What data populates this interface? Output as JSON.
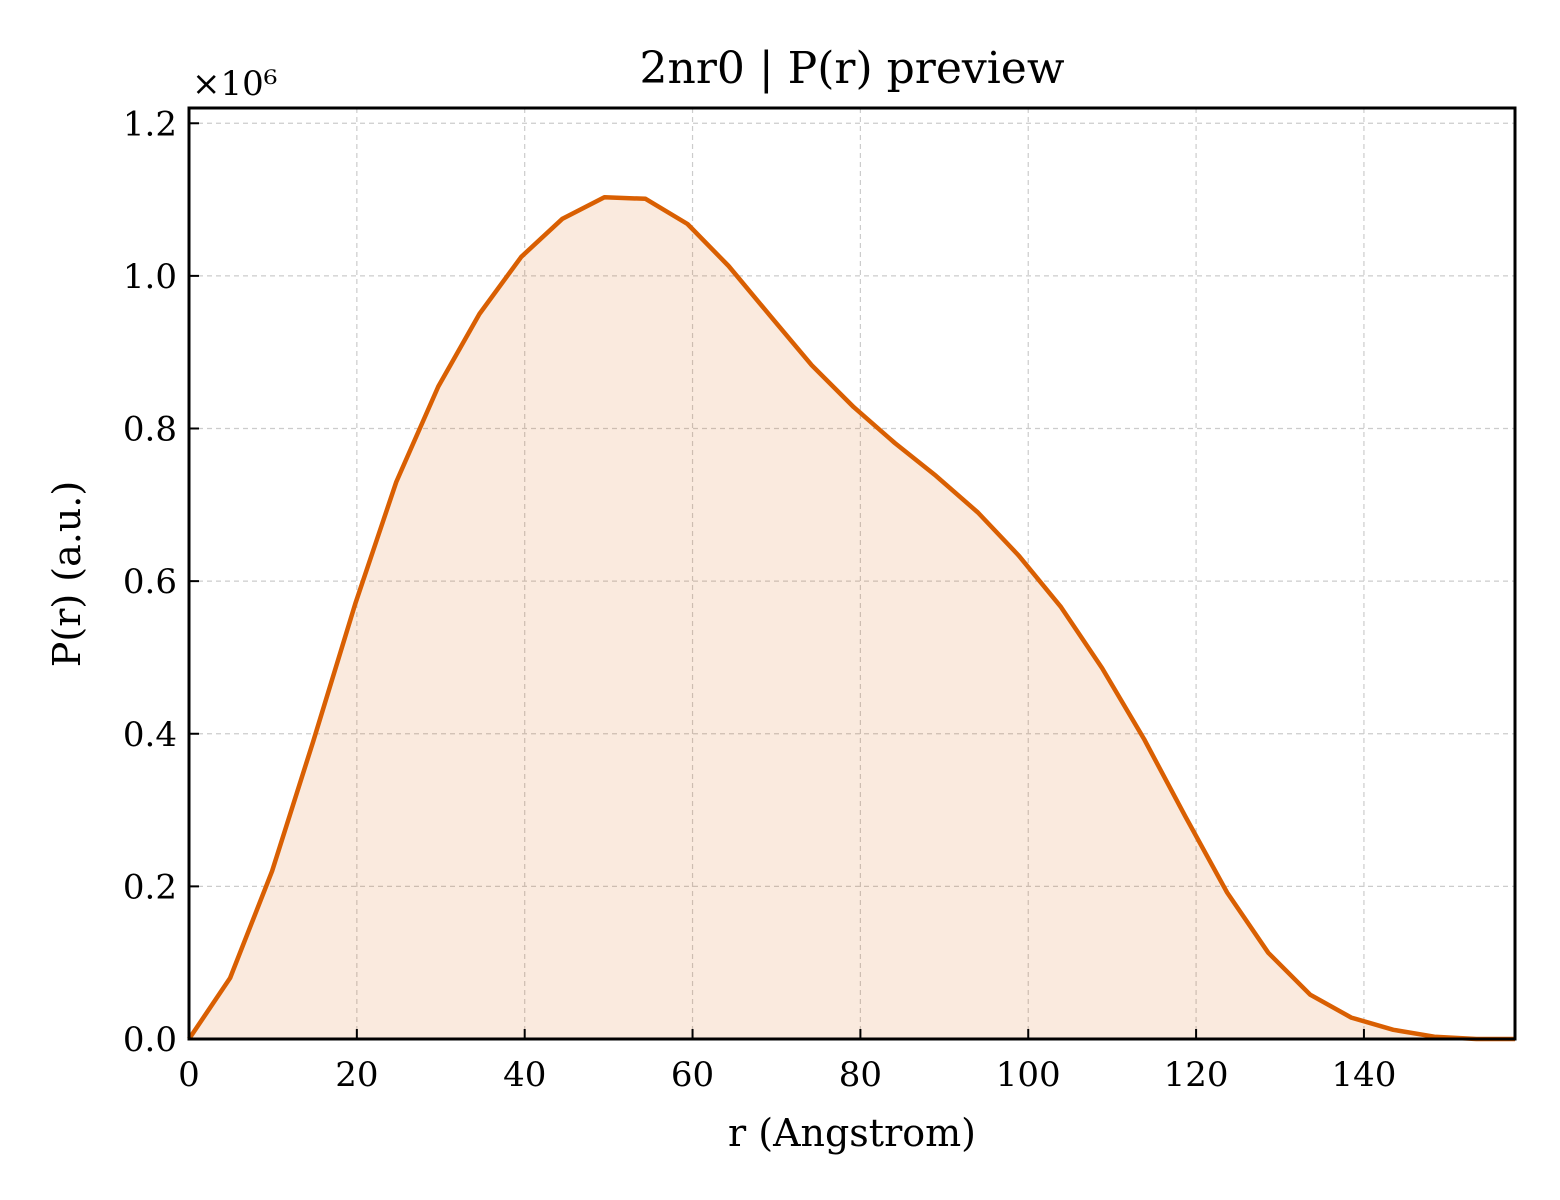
{
  "colors": {
    "line": "#d95f02",
    "fill": "#d95f02",
    "fill_opacity": 0.13,
    "background": "#ffffff",
    "grid": "#cccccc"
  },
  "chart_data": {
    "type": "area",
    "title": "2nr0 | P(r) preview",
    "xlabel": "r (Angstrom)",
    "ylabel": "P(r) (a.u.)",
    "y_multiplier_label": "×10⁶",
    "xlim": [
      0,
      158
    ],
    "ylim": [
      0,
      1.22
    ],
    "x_ticks": [
      0,
      20,
      40,
      60,
      80,
      100,
      120,
      140
    ],
    "x_tick_labels": [
      "0",
      "20",
      "40",
      "60",
      "80",
      "100",
      "120",
      "140"
    ],
    "y_ticks": [
      0.0,
      0.2,
      0.4,
      0.6,
      0.8,
      1.0,
      1.2
    ],
    "y_tick_labels": [
      "0.0",
      "0.2",
      "0.4",
      "0.6",
      "0.8",
      "1.0",
      "1.2"
    ],
    "grid": true,
    "series": [
      {
        "x": [
          0,
          4.9,
          9.9,
          14.8,
          19.8,
          24.7,
          29.7,
          34.6,
          39.6,
          44.5,
          49.5,
          54.4,
          59.4,
          64.3,
          69.3,
          74.2,
          79.2,
          84.1,
          89.0,
          94.0,
          98.9,
          103.9,
          108.8,
          113.8,
          118.7,
          123.7,
          128.6,
          133.6,
          138.5,
          143.5,
          148.4,
          153.4,
          158.0
        ],
        "y": [
          0.0,
          0.08,
          0.22,
          0.39,
          0.57,
          0.73,
          0.855,
          0.95,
          1.025,
          1.075,
          1.103,
          1.101,
          1.068,
          1.013,
          0.947,
          0.883,
          0.828,
          0.781,
          0.738,
          0.69,
          0.633,
          0.566,
          0.486,
          0.393,
          0.292,
          0.192,
          0.113,
          0.058,
          0.028,
          0.012,
          0.003,
          0.0,
          0.0
        ]
      }
    ]
  }
}
